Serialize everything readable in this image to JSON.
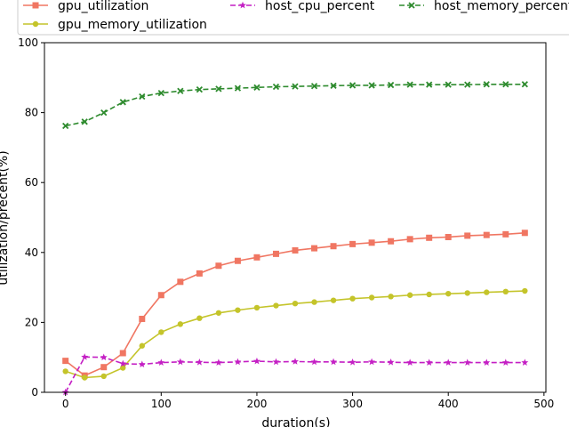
{
  "chart_data": {
    "type": "line",
    "xlabel": "duration(s)",
    "ylabel": "utilization/precent(%)",
    "xlim": [
      -22,
      502
    ],
    "ylim": [
      0,
      100
    ],
    "xticks": [
      0,
      100,
      200,
      300,
      400,
      500
    ],
    "yticks": [
      0,
      20,
      40,
      60,
      80,
      100
    ],
    "legend_position": "top",
    "grid": false,
    "x": [
      0,
      20,
      40,
      60,
      80,
      100,
      120,
      140,
      160,
      180,
      200,
      220,
      240,
      260,
      280,
      300,
      320,
      340,
      360,
      380,
      400,
      420,
      440,
      460,
      480
    ],
    "series": [
      {
        "name": "gpu_utilization",
        "color": "#f07662",
        "marker": "square",
        "linestyle": "solid",
        "values": [
          9.0,
          4.8,
          7.2,
          11.2,
          21.0,
          27.8,
          31.6,
          34.0,
          36.2,
          37.6,
          38.6,
          39.6,
          40.6,
          41.2,
          41.8,
          42.4,
          42.8,
          43.2,
          43.8,
          44.2,
          44.4,
          44.8,
          45.0,
          45.2,
          45.6
        ]
      },
      {
        "name": "gpu_memory_utilization",
        "color": "#c4c42a",
        "marker": "circle",
        "linestyle": "solid",
        "values": [
          6.0,
          4.2,
          4.6,
          7.0,
          13.3,
          17.2,
          19.5,
          21.2,
          22.7,
          23.5,
          24.2,
          24.8,
          25.4,
          25.8,
          26.3,
          26.8,
          27.1,
          27.4,
          27.8,
          28.0,
          28.2,
          28.4,
          28.6,
          28.8,
          29.0
        ]
      },
      {
        "name": "host_cpu_percent",
        "color": "#c41fc4",
        "marker": "star",
        "linestyle": "dashed",
        "values": [
          0.0,
          10.1,
          10.0,
          8.2,
          8.0,
          8.5,
          8.7,
          8.6,
          8.5,
          8.7,
          8.9,
          8.7,
          8.8,
          8.7,
          8.7,
          8.6,
          8.7,
          8.6,
          8.5,
          8.5,
          8.5,
          8.5,
          8.5,
          8.5,
          8.5
        ]
      },
      {
        "name": "host_memory_percent",
        "color": "#2e8b2e",
        "marker": "x",
        "linestyle": "dashed",
        "values": [
          76.2,
          77.4,
          80.0,
          83.0,
          84.6,
          85.6,
          86.2,
          86.6,
          86.8,
          87.0,
          87.2,
          87.4,
          87.5,
          87.6,
          87.7,
          87.8,
          87.8,
          87.9,
          88.0,
          88.0,
          88.0,
          88.0,
          88.1,
          88.1,
          88.1
        ]
      }
    ]
  }
}
